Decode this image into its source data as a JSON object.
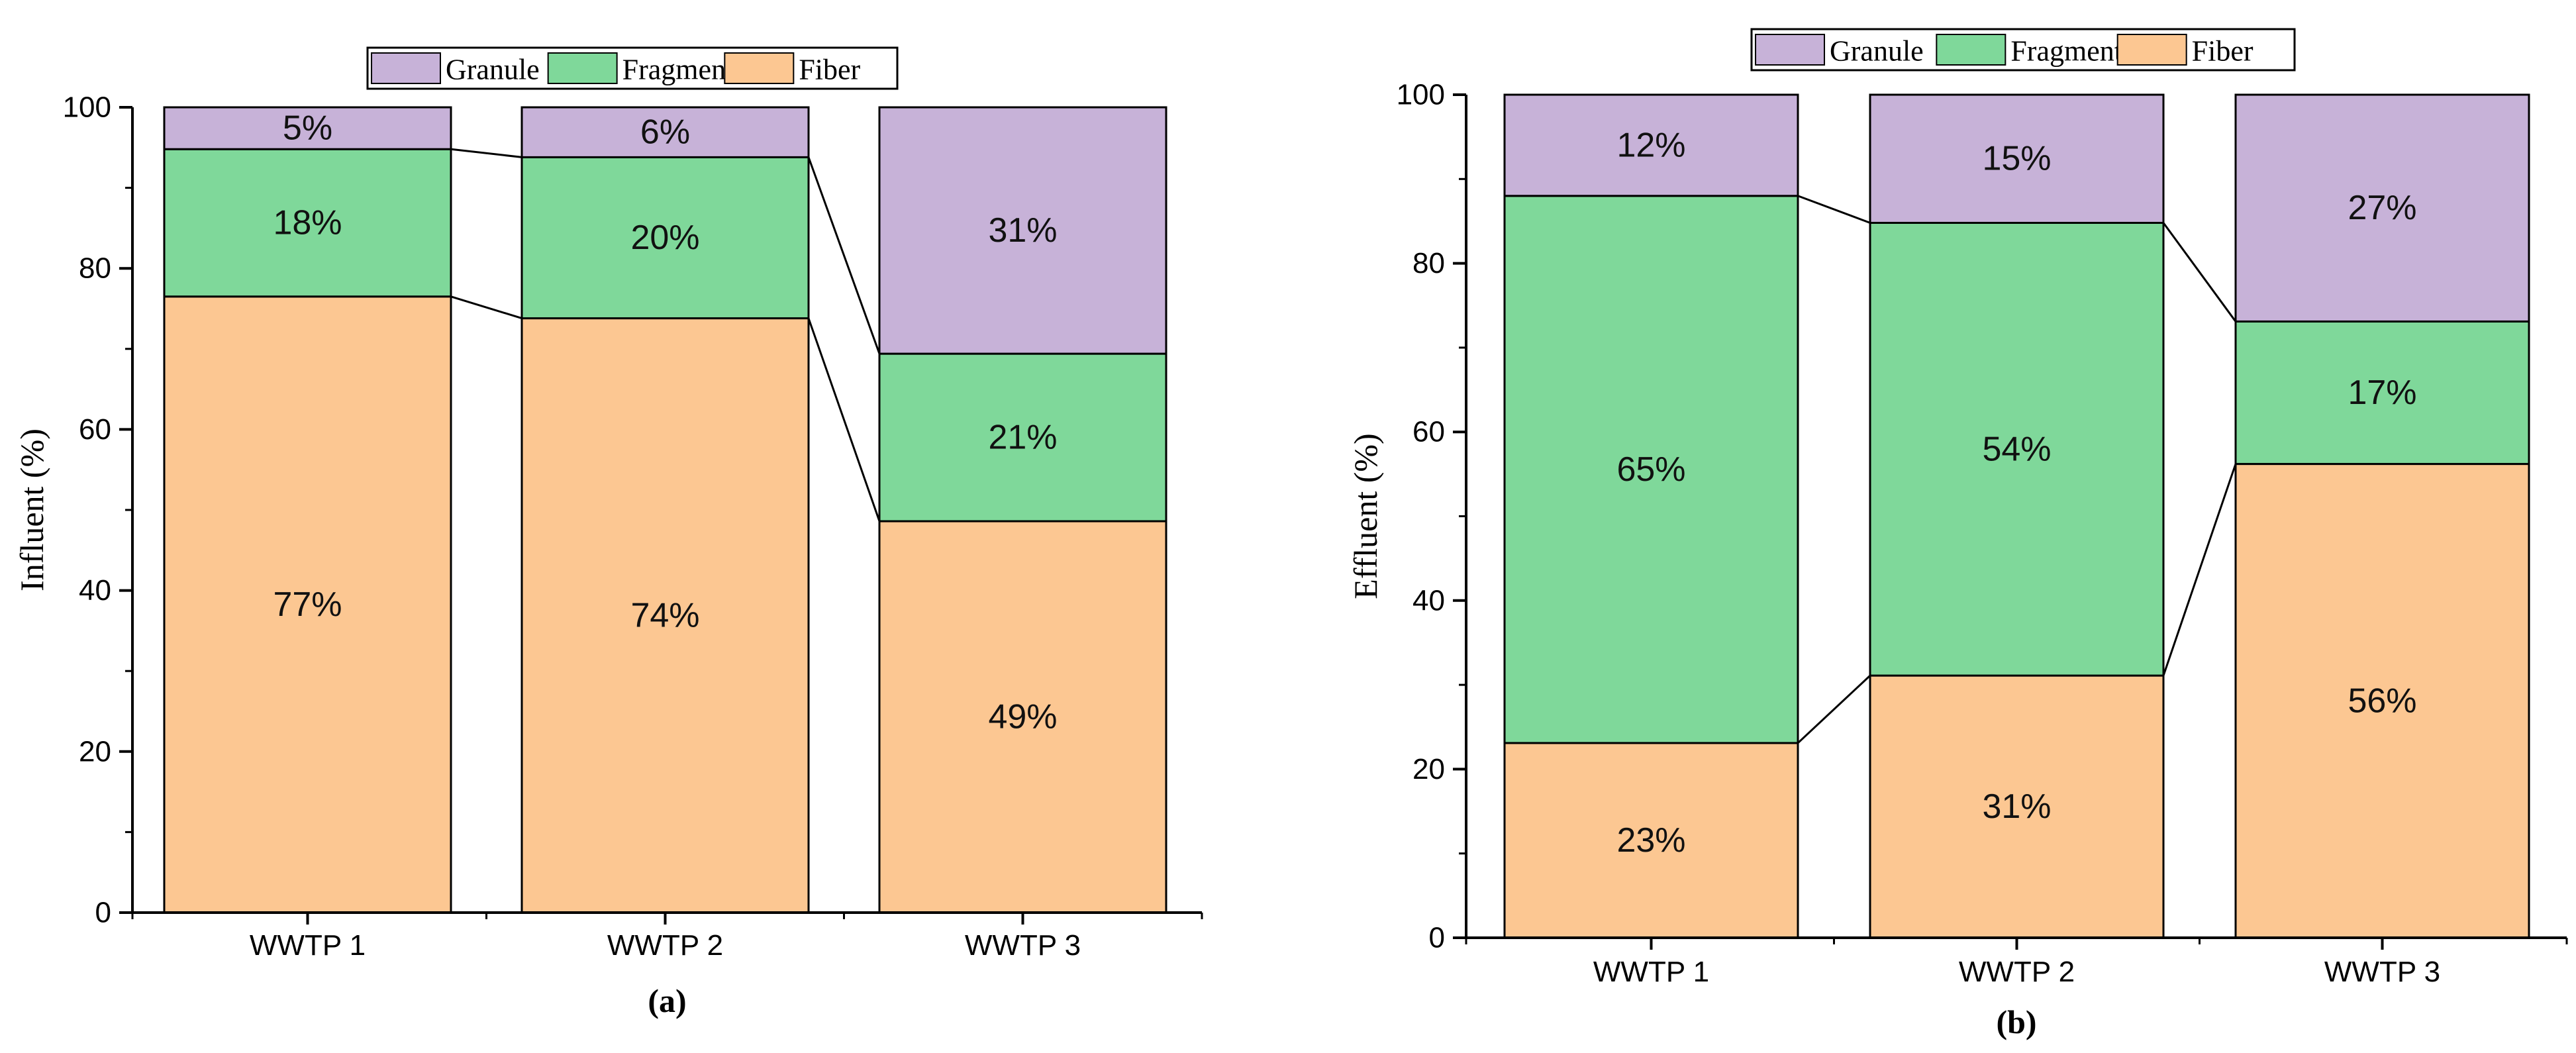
{
  "chart_data": [
    {
      "type": "bar",
      "stacked": true,
      "panel_label": "(a)",
      "title": "",
      "xlabel": "",
      "ylabel": "Influent (%)",
      "ylim": [
        0,
        100
      ],
      "yticks": [
        0,
        20,
        40,
        60,
        80,
        100
      ],
      "categories": [
        "WWTP 1",
        "WWTP 2",
        "WWTP 3"
      ],
      "series": [
        {
          "name": "Fiber",
          "color": "#FCC792",
          "values": [
            76.5,
            73.8,
            48.6
          ],
          "labels": [
            "77%",
            "74%",
            "49%"
          ]
        },
        {
          "name": "Fragment",
          "color": "#7FD89A",
          "values": [
            18.3,
            20.0,
            20.8
          ],
          "labels": [
            "18%",
            "20%",
            "21%"
          ]
        },
        {
          "name": "Granule",
          "color": "#C7B2D8",
          "values": [
            5.2,
            6.2,
            30.6
          ],
          "labels": [
            "5%",
            "6%",
            "31%"
          ]
        }
      ],
      "legend": [
        "Granule",
        "Fragment",
        "Fiber"
      ],
      "legend_position": "top-center"
    },
    {
      "type": "bar",
      "stacked": true,
      "panel_label": "(b)",
      "title": "",
      "xlabel": "",
      "ylabel": "Effluent (%)",
      "ylim": [
        0,
        100
      ],
      "yticks": [
        0,
        20,
        40,
        60,
        80,
        100
      ],
      "categories": [
        "WWTP 1",
        "WWTP 2",
        "WWTP 3"
      ],
      "series": [
        {
          "name": "Fiber",
          "color": "#FCC792",
          "values": [
            23.1,
            31.1,
            56.2
          ],
          "labels": [
            "23%",
            "31%",
            "56%"
          ]
        },
        {
          "name": "Fragment",
          "color": "#7FD89A",
          "values": [
            64.9,
            53.7,
            16.9
          ],
          "labels": [
            "65%",
            "54%",
            "17%"
          ]
        },
        {
          "name": "Granule",
          "color": "#C7B2D8",
          "values": [
            12.0,
            15.2,
            26.9
          ],
          "labels": [
            "12%",
            "15%",
            "27%"
          ]
        }
      ],
      "legend": [
        "Granule",
        "Fragment",
        "Fiber"
      ],
      "legend_position": "top-center"
    }
  ]
}
